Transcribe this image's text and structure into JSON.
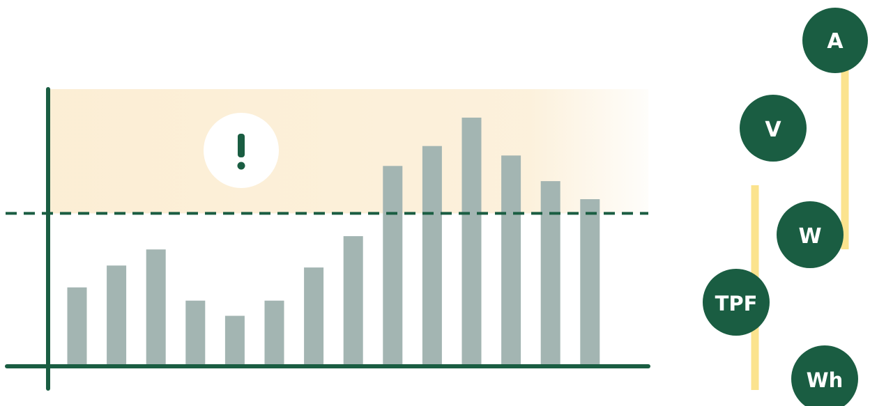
{
  "chart_data": {
    "type": "bar",
    "values": [
      40.5,
      52,
      60.5,
      33.5,
      25.5,
      33.5,
      51,
      67.5,
      104.5,
      115,
      130,
      110,
      96.5,
      87
    ],
    "threshold": 79.5,
    "ylim": [
      0,
      145
    ],
    "grid": false,
    "warning_icon": "exclamation-icon"
  },
  "badges": [
    {
      "label": "A"
    },
    {
      "label": "V"
    },
    {
      "label": "W"
    },
    {
      "label": "TPF"
    },
    {
      "label": "Wh"
    }
  ],
  "colors": {
    "accent": "#1a5d42",
    "bar": "#a3b5b2",
    "warning_zone": "#fbecd0",
    "connector": "#fbe38e",
    "badge_text": "#ffffff"
  }
}
